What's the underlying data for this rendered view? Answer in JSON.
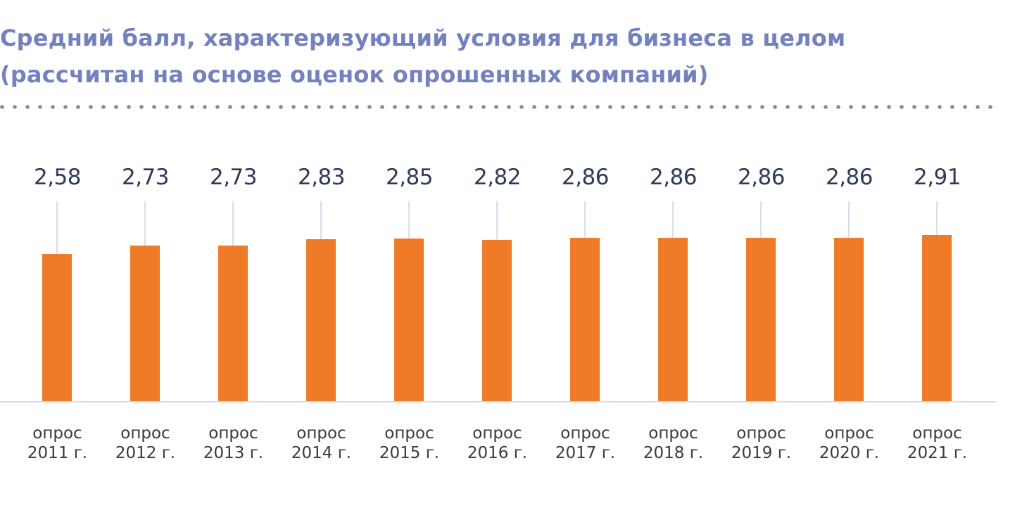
{
  "title": {
    "line1": "Средний балл, характеризующий условия для бизнеса в целом",
    "line2": "(рассчитан на основе оценок опрошенных компаний)"
  },
  "colors": {
    "title": "#7382bf",
    "bar": "#ef7a28",
    "value_label": "#2e3a5c",
    "axis": "#d3dcec",
    "dots": "#8c8c8c"
  },
  "chart_data": {
    "type": "bar",
    "title": "Средний балл, характеризующий условия для бизнеса в целом (рассчитан на основе оценок опрошенных компаний)",
    "xlabel": "",
    "ylabel": "",
    "categories": [
      "опрос 2011 г.",
      "опрос 2012 г.",
      "опрос 2013 г.",
      "опрос 2014 г.",
      "опрос 2015 г.",
      "опрос 2016 г.",
      "опрос 2017 г.",
      "опрос 2018 г.",
      "опрос 2019 г.",
      "опрос 2020 г.",
      "опрос 2021 г."
    ],
    "values": [
      2.58,
      2.73,
      2.73,
      2.83,
      2.85,
      2.82,
      2.86,
      2.86,
      2.86,
      2.86,
      2.91
    ],
    "value_labels": [
      "2,58",
      "2,73",
      "2,73",
      "2,83",
      "2,85",
      "2,82",
      "2,86",
      "2,86",
      "2,86",
      "2,86",
      "2,91"
    ],
    "ylim": [
      0,
      2.91
    ],
    "grid": false,
    "legend": null
  },
  "bars": [
    {
      "value": "2,58",
      "line1": "опрос",
      "line2": "2011 г."
    },
    {
      "value": "2,73",
      "line1": "опрос",
      "line2": "2012 г."
    },
    {
      "value": "2,73",
      "line1": "опрос",
      "line2": "2013 г."
    },
    {
      "value": "2,83",
      "line1": "опрос",
      "line2": "2014 г."
    },
    {
      "value": "2,85",
      "line1": "опрос",
      "line2": "2015 г."
    },
    {
      "value": "2,82",
      "line1": "опрос",
      "line2": "2016 г."
    },
    {
      "value": "2,86",
      "line1": "опрос",
      "line2": "2017 г."
    },
    {
      "value": "2,86",
      "line1": "опрос",
      "line2": "2018 г."
    },
    {
      "value": "2,86",
      "line1": "опрос",
      "line2": "2019 г."
    },
    {
      "value": "2,86",
      "line1": "опрос",
      "line2": "2020 г."
    },
    {
      "value": "2,91",
      "line1": "опрос",
      "line2": "2021 г."
    }
  ]
}
